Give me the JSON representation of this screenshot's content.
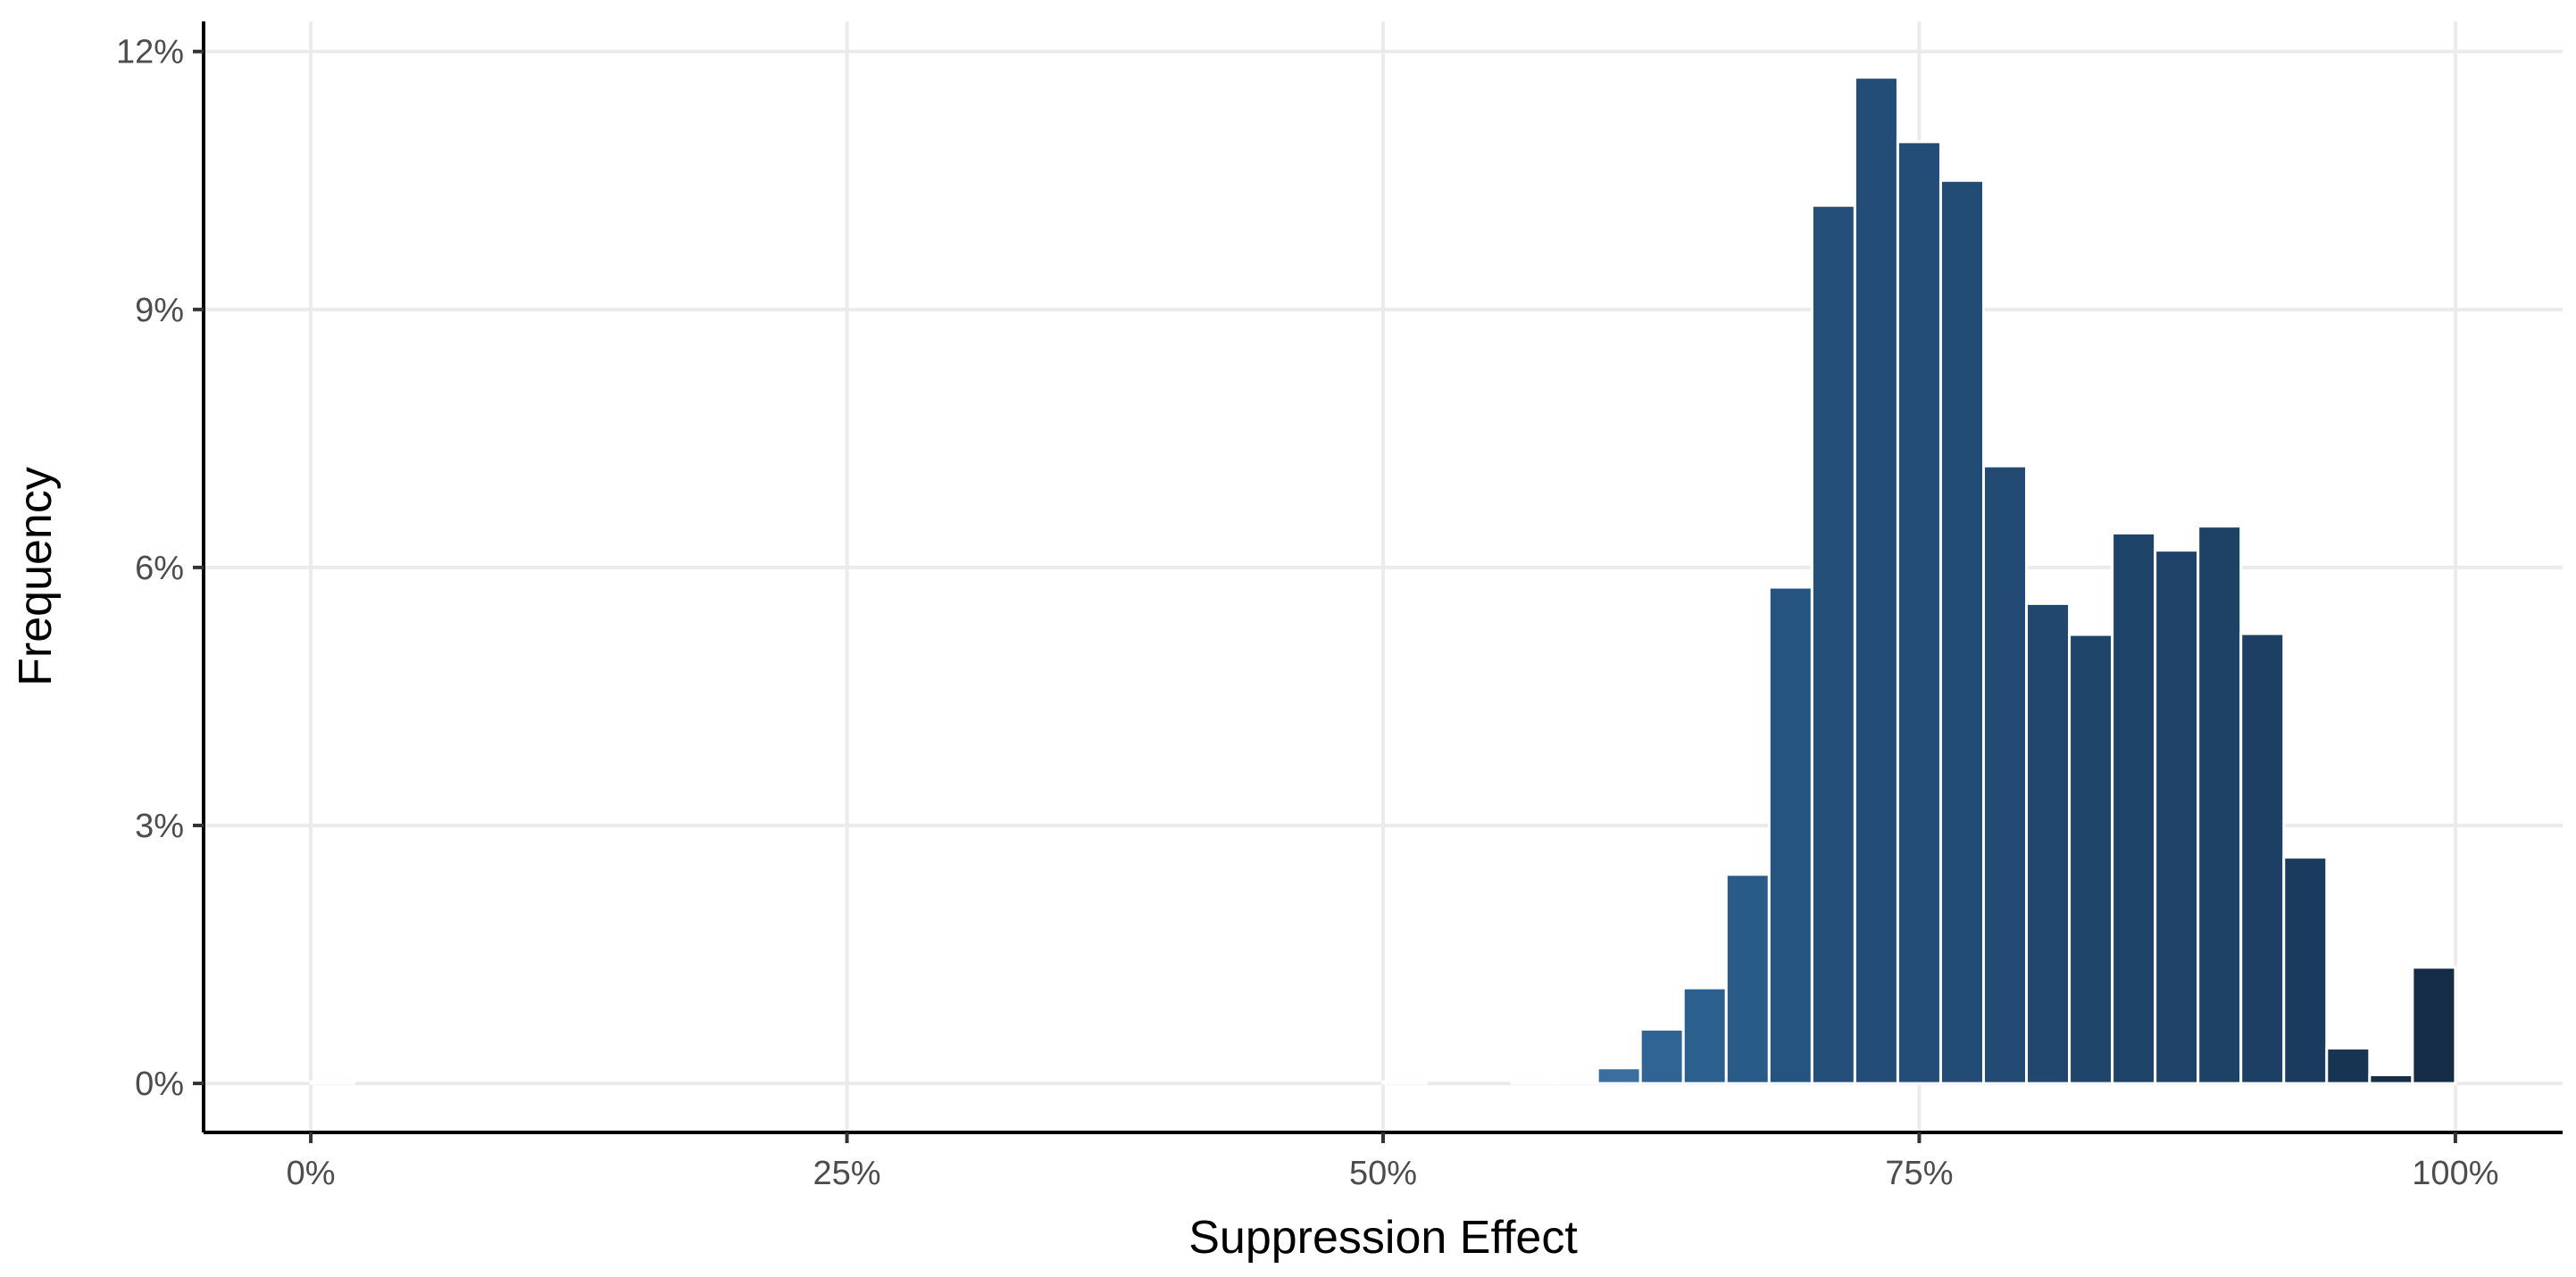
{
  "chart_data": {
    "type": "bar",
    "subtype": "histogram",
    "title": "",
    "xlabel": "Suppression Effect",
    "ylabel": "Frequency",
    "xlim": [
      -0.05,
      1.05
    ],
    "ylim": [
      -0.0057,
      0.1235
    ],
    "x_ticks": [
      0,
      0.25,
      0.5,
      0.75,
      1.0
    ],
    "x_tick_labels": [
      "0%",
      "25%",
      "50%",
      "75%",
      "100%"
    ],
    "y_ticks": [
      0,
      0.03,
      0.06,
      0.09,
      0.12
    ],
    "y_tick_labels": [
      "0%",
      "3%",
      "6%",
      "9%",
      "12%"
    ],
    "grid": true,
    "legend": "none",
    "fill": "gradient by count, light blue (#b9d4ee) to dark navy (#132b43)",
    "bar_outline": "#ffffff",
    "bins": {
      "centers": [
        0.01,
        0.51,
        0.57,
        0.59,
        0.61,
        0.63,
        0.65,
        0.67,
        0.69,
        0.71,
        0.73,
        0.75,
        0.77,
        0.79,
        0.81,
        0.83,
        0.85,
        0.87,
        0.89,
        0.91,
        0.93,
        0.95,
        0.97,
        0.99
      ],
      "width": 0.02,
      "values": [
        0.0001,
        0.0001,
        0.0001,
        0.0001,
        0.0018,
        0.0063,
        0.0111,
        0.0243,
        0.0577,
        0.1021,
        0.117,
        0.1095,
        0.105,
        0.0718,
        0.0558,
        0.0522,
        0.064,
        0.062,
        0.0648,
        0.0523,
        0.0263,
        0.0041,
        0.001,
        0.0135
      ],
      "colors": [
        "#b8d3ed",
        "#b8d3ed",
        "#b8d3ed",
        "#b8d3ed",
        "#3a6e9e",
        "#2f6494",
        "#2b5f8e",
        "#295a88",
        "#265481",
        "#244f79",
        "#234d77",
        "#234d76",
        "#234c75",
        "#224a72",
        "#21476e",
        "#1f456b",
        "#1e4369",
        "#1e4268",
        "#1e4166",
        "#1d3f63",
        "#1b3b5e",
        "#173452",
        "#152f4b",
        "#142c46"
      ]
    }
  }
}
